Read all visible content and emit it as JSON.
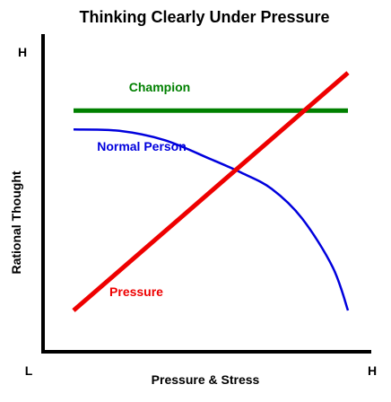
{
  "chart_data": {
    "type": "line",
    "title": "Thinking Clearly Under Pressure",
    "xlabel": "Pressure & Stress",
    "ylabel": "Rational Thought",
    "x_tick_labels": {
      "low": "L",
      "high": "H"
    },
    "y_tick_labels": {
      "high": "H"
    },
    "xlim": [
      0,
      100
    ],
    "ylim": [
      0,
      100
    ],
    "grid": false,
    "legend": "none (series labeled inline)",
    "series": [
      {
        "name": "Champion",
        "color": "#008000",
        "x": [
          10,
          100
        ],
        "y": [
          78,
          78
        ]
      },
      {
        "name": "Normal Person",
        "color": "#0000dd",
        "x": [
          10,
          25,
          40,
          55,
          65,
          75,
          85,
          95,
          100
        ],
        "y": [
          71,
          70.5,
          67,
          60,
          55,
          49,
          38,
          20,
          4
        ]
      },
      {
        "name": "Pressure",
        "color": "#ee0000",
        "x": [
          10,
          100
        ],
        "y": [
          4,
          92
        ]
      }
    ]
  }
}
